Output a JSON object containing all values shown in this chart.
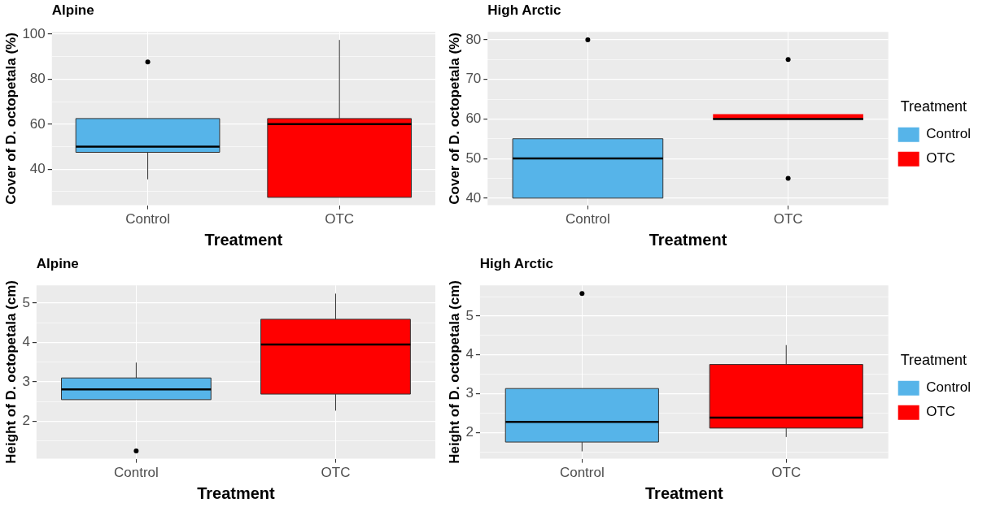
{
  "chart_data": [
    {
      "type": "box",
      "title": "Alpine",
      "xlabel": "Treatment",
      "ylabel": "Cover of D. octopetala (%)",
      "categories": [
        "Control",
        "OTC"
      ],
      "series": [
        {
          "color": "#56b4e9",
          "boxes": [
            {
              "low": 35.5,
              "q1": 47.5,
              "median": 50,
              "q3": 62.5,
              "high": 62.5,
              "outliers": [
                87.6
              ]
            },
            null
          ]
        },
        {
          "color": "#ff0000",
          "boxes": [
            null,
            {
              "low": 27.5,
              "q1": 27.5,
              "median": 60,
              "q3": 62.5,
              "high": 97.4
            }
          ]
        }
      ],
      "ylim": [
        24,
        101
      ],
      "yticks": [
        {
          "value": 30,
          "label": null
        },
        40,
        {
          "value": 50,
          "label": null
        },
        60,
        {
          "value": 70,
          "label": null
        },
        80,
        {
          "value": 90,
          "label": null
        },
        100
      ],
      "grid": true
    },
    {
      "type": "box",
      "title": "High Arctic",
      "xlabel": "Treatment",
      "ylabel": "Cover of D. octopetala (%)",
      "categories": [
        "Control",
        "OTC"
      ],
      "series": [
        {
          "name": "Control",
          "color": "#56b4e9",
          "boxes": [
            {
              "low": 40,
              "q1": 40,
              "median": 50,
              "q3": 55,
              "high": 55,
              "outliers": [
                80
              ]
            },
            null
          ]
        },
        {
          "name": "OTC",
          "color": "#ff0000",
          "boxes": [
            null,
            {
              "low": 60,
              "q1": 60,
              "median": 60,
              "q3": 60,
              "high": 60,
              "outliers": [
                75,
                45
              ]
            }
          ]
        }
      ],
      "ylim": [
        38.2,
        82
      ],
      "yticks": [
        40,
        {
          "value": 45,
          "label": null
        },
        50,
        {
          "value": 55,
          "label": null
        },
        60,
        {
          "value": 65,
          "label": null
        },
        70,
        {
          "value": 75,
          "label": null
        },
        80
      ],
      "grid": true,
      "legend": "right",
      "legend_title": "Treatment"
    },
    {
      "type": "box",
      "title": "Alpine",
      "xlabel": "Treatment",
      "ylabel": "Height of D. octopetala (cm)",
      "categories": [
        "Control",
        "OTC"
      ],
      "series": [
        {
          "color": "#56b4e9",
          "boxes": [
            {
              "low": 2.55,
              "q1": 2.55,
              "median": 2.81,
              "q3": 3.1,
              "high": 3.49,
              "outliers": [
                1.25
              ]
            },
            null
          ]
        },
        {
          "color": "#ff0000",
          "boxes": [
            null,
            {
              "low": 2.27,
              "q1": 2.69,
              "median": 3.95,
              "q3": 4.59,
              "high": 5.24
            }
          ]
        }
      ],
      "ylim": [
        1.05,
        5.45
      ],
      "yticks": [
        {
          "value": 1.5,
          "label": null
        },
        2,
        {
          "value": 2.5,
          "label": null
        },
        3,
        {
          "value": 3.5,
          "label": null
        },
        4,
        {
          "value": 4.5,
          "label": null
        },
        5
      ],
      "grid": true
    },
    {
      "type": "box",
      "title": "High Arctic",
      "xlabel": "Treatment",
      "ylabel": "Height of D. octopetala (cm)",
      "categories": [
        "Control",
        "OTC"
      ],
      "series": [
        {
          "name": "Control",
          "color": "#56b4e9",
          "boxes": [
            {
              "low": 1.51,
              "q1": 1.75,
              "median": 2.27,
              "q3": 3.13,
              "high": 3.13,
              "outliers": [
                5.58
              ]
            },
            null
          ]
        },
        {
          "name": "OTC",
          "color": "#ff0000",
          "boxes": [
            null,
            {
              "low": 1.88,
              "q1": 2.11,
              "median": 2.38,
              "q3": 3.75,
              "high": 4.25
            }
          ]
        }
      ],
      "ylim": [
        1.32,
        5.79
      ],
      "yticks": [
        {
          "value": 1.5,
          "label": null
        },
        2,
        {
          "value": 2.5,
          "label": null
        },
        3,
        {
          "value": 3.5,
          "label": null
        },
        4,
        {
          "value": 4.5,
          "label": null
        },
        5,
        {
          "value": 5.5,
          "label": null
        }
      ],
      "grid": true,
      "legend": "right",
      "legend_title": "Treatment"
    }
  ]
}
